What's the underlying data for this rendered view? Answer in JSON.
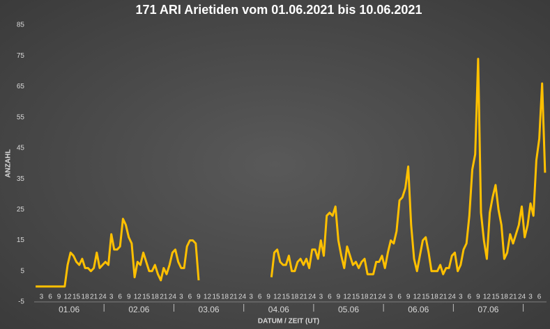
{
  "chart_data": {
    "type": "line",
    "title": "171 ARI Arietiden vom 01.06.2021 bis 10.06.2021",
    "y_label": "ANZAHL",
    "x_label": "DATUM / ZEIT (UT)",
    "date_groups": [
      "01.06",
      "02.06",
      "03.06",
      "04.06",
      "05.06",
      "06.06",
      "07.06"
    ],
    "categories": [
      null,
      null,
      "3",
      null,
      null,
      "6",
      null,
      null,
      "9",
      null,
      null,
      "12",
      null,
      null,
      "15",
      null,
      null,
      "18",
      null,
      null,
      "21",
      null,
      null,
      "24",
      null,
      null,
      "3",
      null,
      null,
      "6",
      null,
      null,
      "9",
      null,
      null,
      "12",
      null,
      null,
      "15",
      null,
      null,
      "18",
      null,
      null,
      "21",
      null,
      null,
      "24",
      null,
      null,
      "3",
      null,
      null,
      "6",
      null,
      null,
      "9",
      null,
      null,
      "12",
      null,
      null,
      "15",
      null,
      null,
      "18",
      null,
      null,
      "21",
      null,
      null,
      "24",
      null,
      null,
      "3",
      null,
      null,
      "6",
      null,
      null,
      "9",
      null,
      null,
      "12",
      null,
      null,
      "15",
      null,
      null,
      "18",
      null,
      null,
      "21",
      null,
      null,
      "24",
      null,
      null,
      "3",
      null,
      null,
      "6",
      null,
      null,
      "9",
      null,
      null,
      "12",
      null,
      null,
      "15",
      null,
      null,
      "18",
      null,
      null,
      "21",
      null,
      null,
      "24",
      null,
      null,
      "3",
      null,
      null,
      "6",
      null,
      null,
      "9",
      null,
      null,
      "12",
      null,
      null,
      "15",
      null,
      null,
      "18",
      null,
      null,
      "21",
      null,
      null,
      "24",
      null,
      null,
      "3",
      null,
      null,
      "6",
      null,
      null,
      "9",
      null,
      null,
      "12",
      null,
      null,
      "15",
      null,
      null,
      "18",
      null,
      null,
      "21",
      null,
      null,
      "24",
      null,
      null,
      "3",
      null,
      null,
      "6",
      null,
      null
    ],
    "series": [
      {
        "name": "ANZAHL",
        "color": "#ffc000",
        "values": [
          0,
          0,
          0,
          0,
          0,
          0,
          0,
          0,
          0,
          0,
          0,
          7,
          11,
          10,
          8,
          7,
          9,
          6,
          6,
          5,
          6,
          11,
          6,
          7,
          8,
          7,
          17,
          12,
          12,
          13,
          22,
          20,
          16,
          14,
          3,
          8,
          7,
          11,
          8,
          5,
          5,
          7,
          4,
          2,
          6,
          4,
          7,
          11,
          12,
          8,
          6,
          6,
          13,
          15,
          15,
          14,
          2,
          null,
          null,
          null,
          null,
          null,
          null,
          null,
          null,
          null,
          null,
          null,
          null,
          null,
          null,
          null,
          null,
          null,
          null,
          null,
          null,
          null,
          null,
          null,
          null,
          3,
          11,
          12,
          8,
          7,
          7,
          10,
          5,
          5,
          8,
          9,
          7,
          9,
          6,
          12,
          12,
          9,
          15,
          10,
          23,
          24,
          23,
          26,
          15,
          10,
          6,
          13,
          10,
          7,
          8,
          6,
          8,
          9,
          4,
          4,
          4,
          8,
          8,
          10,
          6,
          11,
          15,
          14,
          18,
          28,
          29,
          32,
          39,
          20,
          9,
          5,
          10,
          15,
          16,
          11,
          5,
          5,
          5,
          7,
          4,
          6,
          6,
          10,
          11,
          5,
          7,
          12,
          14,
          23,
          38,
          43,
          74,
          24,
          15,
          9,
          24,
          29,
          33,
          25,
          20,
          9,
          11,
          17,
          14,
          17,
          20,
          26,
          16,
          20,
          27,
          23,
          41,
          48,
          66,
          37
        ]
      }
    ],
    "ylim": [
      -5,
      85
    ],
    "yticks": [
      -5,
      5,
      15,
      25,
      35,
      45,
      55,
      65,
      75,
      85
    ]
  }
}
